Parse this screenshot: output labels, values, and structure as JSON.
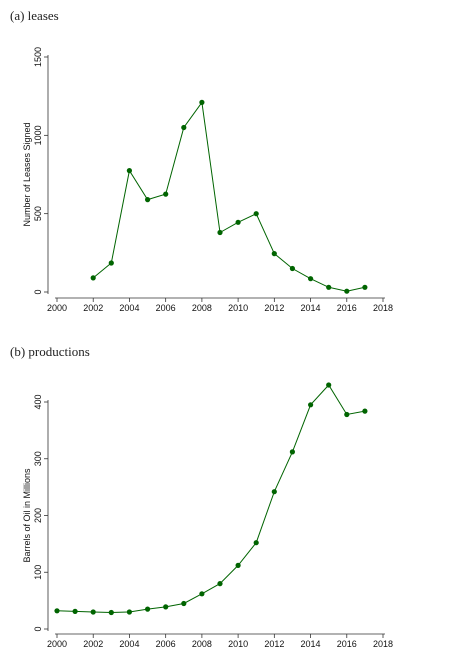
{
  "chart_data": [
    {
      "type": "line",
      "panel_title": "(a) leases",
      "ylabel": "Number of Leases Signed",
      "xlabel": "",
      "x_ticks": [
        2000,
        2002,
        2004,
        2006,
        2008,
        2010,
        2012,
        2014,
        2016,
        2018
      ],
      "y_ticks": [
        0,
        500,
        1000,
        1500
      ],
      "xlim": [
        2000,
        2018
      ],
      "ylim": [
        0,
        1500
      ],
      "color": "#006400",
      "series": [
        {
          "x": [
            2002,
            2003,
            2004,
            2005,
            2006,
            2007,
            2008,
            2009,
            2010,
            2011,
            2012,
            2013,
            2014,
            2015,
            2016,
            2017
          ],
          "values": [
            90,
            185,
            775,
            590,
            625,
            1050,
            1210,
            380,
            445,
            500,
            245,
            150,
            85,
            30,
            5,
            30
          ]
        }
      ]
    },
    {
      "type": "line",
      "panel_title": "(b) productions",
      "ylabel": "Barrels of Oil in Millions",
      "xlabel": "",
      "x_ticks": [
        2000,
        2002,
        2004,
        2006,
        2008,
        2010,
        2012,
        2014,
        2016,
        2018
      ],
      "y_ticks": [
        0,
        100,
        200,
        300,
        400
      ],
      "xlim": [
        2000,
        2018
      ],
      "ylim": [
        0,
        400
      ],
      "color": "#006400",
      "series": [
        {
          "x": [
            2000,
            2001,
            2002,
            2003,
            2004,
            2005,
            2006,
            2007,
            2008,
            2009,
            2010,
            2011,
            2012,
            2013,
            2014,
            2015,
            2016,
            2017
          ],
          "values": [
            32,
            31,
            30,
            29,
            30,
            35,
            39,
            45,
            62,
            80,
            112,
            152,
            242,
            312,
            395,
            430,
            378,
            384
          ]
        }
      ]
    }
  ]
}
